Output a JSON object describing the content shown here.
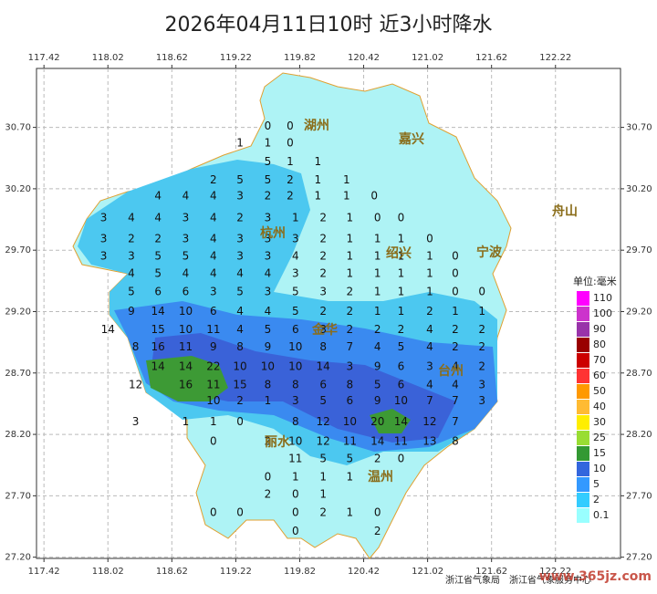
{
  "chart_data": {
    "type": "map",
    "title": "2026年04月11日10时 近3小时降水",
    "xlim": [
      117.35,
      122.83
    ],
    "ylim": [
      27.19,
      31.18
    ],
    "xticks": [
      117.42,
      118.02,
      118.62,
      119.22,
      119.82,
      120.42,
      121.02,
      121.62,
      122.22
    ],
    "yticks": [
      {
        "value": 27.2,
        "label": "27.20"
      },
      {
        "value": 27.7,
        "label": "27.70"
      },
      {
        "value": 28.2,
        "label": "28.20"
      },
      {
        "value": 28.7,
        "label": "28.70"
      },
      {
        "value": 29.2,
        "label": "29.20"
      },
      {
        "value": 29.7,
        "label": "29.70"
      },
      {
        "value": 30.2,
        "label": "30.20"
      },
      {
        "value": 30.7,
        "label": "30.70"
      }
    ],
    "grid": true,
    "legend": {
      "title": "单位:毫米",
      "items": [
        {
          "value": 0.1,
          "color": "#99ffff"
        },
        {
          "value": 2,
          "color": "#33ccff"
        },
        {
          "value": 5,
          "color": "#3399ff"
        },
        {
          "value": 10,
          "color": "#3366dd"
        },
        {
          "value": 15,
          "color": "#339933"
        },
        {
          "value": 25,
          "color": "#99dd33"
        },
        {
          "value": 30,
          "color": "#ffee00"
        },
        {
          "value": 40,
          "color": "#ffbb33"
        },
        {
          "value": 50,
          "color": "#ff9900"
        },
        {
          "value": 60,
          "color": "#ff3333"
        },
        {
          "value": 70,
          "color": "#cc0000"
        },
        {
          "value": 80,
          "color": "#990000"
        },
        {
          "value": 90,
          "color": "#9933aa"
        },
        {
          "value": 100,
          "color": "#cc33cc"
        },
        {
          "value": 110,
          "color": "#ff00ff"
        }
      ]
    },
    "cities": [
      "湖州",
      "嘉兴",
      "杭州",
      "绍兴",
      "宁波",
      "舟山",
      "金华",
      "台州",
      "丽水",
      "温州"
    ],
    "rows": [
      {
        "lat": 30.71,
        "points": [
          [
            119.52,
            0
          ],
          [
            119.73,
            0
          ]
        ]
      },
      {
        "lat": 30.57,
        "points": [
          [
            119.26,
            1
          ],
          [
            119.52,
            1
          ],
          [
            119.73,
            0
          ]
        ]
      },
      {
        "lat": 30.42,
        "points": [
          [
            119.52,
            5
          ],
          [
            119.73,
            1
          ],
          [
            119.99,
            1
          ]
        ]
      },
      {
        "lat": 30.27,
        "points": [
          [
            119.01,
            2
          ],
          [
            119.26,
            5
          ],
          [
            119.52,
            5
          ],
          [
            119.73,
            2
          ],
          [
            119.99,
            1
          ],
          [
            120.26,
            1
          ]
        ]
      },
      {
        "lat": 30.14,
        "points": [
          [
            118.49,
            4
          ],
          [
            118.75,
            4
          ],
          [
            119.01,
            4
          ],
          [
            119.26,
            3
          ],
          [
            119.52,
            2
          ],
          [
            119.73,
            2
          ],
          [
            119.99,
            1
          ],
          [
            120.26,
            1
          ],
          [
            120.52,
            0
          ]
        ]
      },
      {
        "lat": 29.96,
        "points": [
          [
            117.98,
            3
          ],
          [
            118.24,
            4
          ],
          [
            118.49,
            4
          ],
          [
            118.75,
            3
          ],
          [
            119.01,
            4
          ],
          [
            119.26,
            2
          ],
          [
            119.52,
            3
          ],
          [
            119.78,
            1
          ],
          [
            120.04,
            2
          ],
          [
            120.29,
            1
          ],
          [
            120.55,
            0
          ],
          [
            120.77,
            0
          ]
        ]
      },
      {
        "lat": 29.79,
        "points": [
          [
            117.98,
            3
          ],
          [
            118.24,
            2
          ],
          [
            118.49,
            2
          ],
          [
            118.75,
            3
          ],
          [
            119.01,
            4
          ],
          [
            119.26,
            3
          ],
          [
            119.52,
            3
          ],
          [
            119.78,
            3
          ],
          [
            120.04,
            2
          ],
          [
            120.29,
            1
          ],
          [
            120.55,
            1
          ],
          [
            120.77,
            1
          ],
          [
            121.04,
            0
          ]
        ]
      },
      {
        "lat": 29.65,
        "points": [
          [
            117.98,
            3
          ],
          [
            118.24,
            3
          ],
          [
            118.49,
            5
          ],
          [
            118.75,
            5
          ],
          [
            119.01,
            4
          ],
          [
            119.26,
            3
          ],
          [
            119.52,
            3
          ],
          [
            119.78,
            4
          ],
          [
            120.04,
            2
          ],
          [
            120.29,
            1
          ],
          [
            120.55,
            1
          ],
          [
            120.77,
            1
          ],
          [
            121.04,
            1
          ],
          [
            121.28,
            0
          ]
        ]
      },
      {
        "lat": 29.51,
        "points": [
          [
            118.24,
            4
          ],
          [
            118.49,
            5
          ],
          [
            118.75,
            4
          ],
          [
            119.01,
            4
          ],
          [
            119.26,
            4
          ],
          [
            119.52,
            4
          ],
          [
            119.78,
            3
          ],
          [
            120.04,
            2
          ],
          [
            120.29,
            1
          ],
          [
            120.55,
            1
          ],
          [
            120.77,
            1
          ],
          [
            121.04,
            1
          ],
          [
            121.28,
            0
          ]
        ]
      },
      {
        "lat": 29.36,
        "points": [
          [
            118.24,
            5
          ],
          [
            118.49,
            6
          ],
          [
            118.75,
            6
          ],
          [
            119.01,
            3
          ],
          [
            119.26,
            5
          ],
          [
            119.52,
            3
          ],
          [
            119.78,
            5
          ],
          [
            120.04,
            3
          ],
          [
            120.29,
            2
          ],
          [
            120.55,
            1
          ],
          [
            120.77,
            1
          ],
          [
            121.04,
            1
          ],
          [
            121.28,
            0
          ],
          [
            121.53,
            0
          ]
        ]
      },
      {
        "lat": 29.2,
        "points": [
          [
            118.24,
            9
          ],
          [
            118.49,
            14
          ],
          [
            118.75,
            10
          ],
          [
            119.01,
            6
          ],
          [
            119.26,
            4
          ],
          [
            119.52,
            4
          ],
          [
            119.78,
            5
          ],
          [
            120.04,
            2
          ],
          [
            120.29,
            2
          ],
          [
            120.55,
            1
          ],
          [
            120.77,
            1
          ],
          [
            121.04,
            2
          ],
          [
            121.28,
            1
          ],
          [
            121.53,
            1
          ]
        ]
      },
      {
        "lat": 29.05,
        "points": [
          [
            118.02,
            14
          ],
          [
            118.49,
            15
          ],
          [
            118.75,
            10
          ],
          [
            119.01,
            11
          ],
          [
            119.26,
            4
          ],
          [
            119.52,
            5
          ],
          [
            119.78,
            6
          ],
          [
            120.04,
            3
          ],
          [
            120.29,
            2
          ],
          [
            120.55,
            2
          ],
          [
            120.77,
            2
          ],
          [
            121.04,
            4
          ],
          [
            121.28,
            2
          ],
          [
            121.53,
            2
          ]
        ]
      },
      {
        "lat": 28.91,
        "points": [
          [
            118.28,
            8
          ],
          [
            118.49,
            16
          ],
          [
            118.75,
            11
          ],
          [
            119.01,
            9
          ],
          [
            119.26,
            8
          ],
          [
            119.52,
            9
          ],
          [
            119.78,
            10
          ],
          [
            120.04,
            8
          ],
          [
            120.29,
            7
          ],
          [
            120.55,
            4
          ],
          [
            120.77,
            5
          ],
          [
            121.04,
            4
          ],
          [
            121.28,
            2
          ],
          [
            121.53,
            2
          ]
        ]
      },
      {
        "lat": 28.75,
        "points": [
          [
            118.49,
            14
          ],
          [
            118.75,
            14
          ],
          [
            119.01,
            22
          ],
          [
            119.26,
            10
          ],
          [
            119.52,
            10
          ],
          [
            119.78,
            10
          ],
          [
            120.04,
            14
          ],
          [
            120.29,
            3
          ],
          [
            120.55,
            9
          ],
          [
            120.77,
            6
          ],
          [
            121.04,
            3
          ],
          [
            121.28,
            4
          ],
          [
            121.53,
            2
          ]
        ]
      },
      {
        "lat": 28.6,
        "points": [
          [
            118.28,
            12
          ],
          [
            118.75,
            16
          ],
          [
            119.01,
            11
          ],
          [
            119.26,
            15
          ],
          [
            119.52,
            8
          ],
          [
            119.78,
            8
          ],
          [
            120.04,
            6
          ],
          [
            120.29,
            8
          ],
          [
            120.55,
            5
          ],
          [
            120.77,
            6
          ],
          [
            121.04,
            4
          ],
          [
            121.28,
            4
          ],
          [
            121.53,
            3
          ]
        ]
      },
      {
        "lat": 28.47,
        "points": [
          [
            119.01,
            10
          ],
          [
            119.26,
            2
          ],
          [
            119.52,
            1
          ],
          [
            119.78,
            3
          ],
          [
            120.04,
            5
          ],
          [
            120.29,
            6
          ],
          [
            120.55,
            9
          ],
          [
            120.77,
            10
          ],
          [
            121.04,
            7
          ],
          [
            121.28,
            7
          ],
          [
            121.53,
            3
          ]
        ]
      },
      {
        "lat": 28.3,
        "points": [
          [
            118.28,
            3
          ],
          [
            118.75,
            1
          ],
          [
            119.01,
            1
          ],
          [
            119.26,
            0
          ],
          [
            119.78,
            8
          ],
          [
            120.04,
            12
          ],
          [
            120.29,
            10
          ],
          [
            120.55,
            20
          ],
          [
            120.77,
            14
          ],
          [
            121.04,
            12
          ],
          [
            121.28,
            7
          ]
        ]
      },
      {
        "lat": 28.14,
        "points": [
          [
            119.01,
            0
          ],
          [
            119.52,
            2
          ],
          [
            119.78,
            10
          ],
          [
            120.04,
            12
          ],
          [
            120.29,
            11
          ],
          [
            120.55,
            14
          ],
          [
            120.77,
            11
          ],
          [
            121.04,
            13
          ],
          [
            121.28,
            8
          ]
        ]
      },
      {
        "lat": 28.0,
        "points": [
          [
            119.78,
            11
          ],
          [
            120.04,
            5
          ],
          [
            120.29,
            5
          ],
          [
            120.55,
            2
          ],
          [
            120.77,
            0
          ]
        ]
      },
      {
        "lat": 27.85,
        "points": [
          [
            119.52,
            0
          ],
          [
            119.78,
            1
          ],
          [
            120.04,
            1
          ],
          [
            120.29,
            1
          ]
        ]
      },
      {
        "lat": 27.71,
        "points": [
          [
            119.52,
            2
          ],
          [
            119.78,
            0
          ],
          [
            120.04,
            1
          ]
        ]
      },
      {
        "lat": 27.56,
        "points": [
          [
            119.01,
            0
          ],
          [
            119.26,
            0
          ],
          [
            119.78,
            0
          ],
          [
            120.04,
            2
          ],
          [
            120.29,
            1
          ],
          [
            120.55,
            0
          ]
        ]
      },
      {
        "lat": 27.41,
        "points": [
          [
            119.78,
            0
          ],
          [
            120.55,
            2
          ]
        ]
      }
    ],
    "credits": [
      "浙江省气象局",
      "浙江省气象服务中心"
    ],
    "watermark": "www.365jz.com"
  }
}
